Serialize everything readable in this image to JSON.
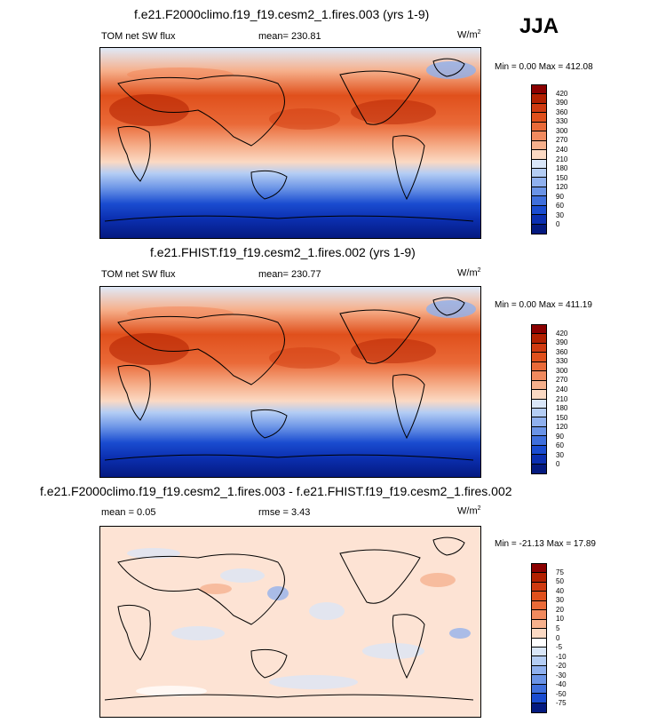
{
  "season": "JJA",
  "panels": [
    {
      "title": "f.e21.F2000climo.f19_f19.cesm2_1.fires.003 (yrs 1-9)",
      "left_label": "TOM net SW flux",
      "mid_label": "mean= 230.81",
      "units": "W/m",
      "units_sup": "2",
      "minmax": "Min =   0.00 Max = 412.08",
      "ticks": [
        "420",
        "390",
        "360",
        "330",
        "300",
        "270",
        "240",
        "210",
        "180",
        "150",
        "120",
        "90",
        "60",
        "30",
        "0"
      ]
    },
    {
      "title": "f.e21.FHIST.f19_f19.cesm2_1.fires.002 (yrs 1-9)",
      "left_label": "TOM net SW flux",
      "mid_label": "mean= 230.77",
      "units": "W/m",
      "units_sup": "2",
      "minmax": "Min =   0.00 Max = 411.19",
      "ticks": [
        "420",
        "390",
        "360",
        "330",
        "300",
        "270",
        "240",
        "210",
        "180",
        "150",
        "120",
        "90",
        "60",
        "30",
        "0"
      ]
    },
    {
      "title": "f.e21.F2000climo.f19_f19.cesm2_1.fires.003 - f.e21.FHIST.f19_f19.cesm2_1.fires.002",
      "left_label": "mean =   0.05",
      "mid_label": "rmse =   3.43",
      "units": "W/m",
      "units_sup": "2",
      "minmax": "Min = -21.13 Max =  17.89",
      "ticks": [
        "75",
        "50",
        "40",
        "30",
        "20",
        "10",
        "5",
        "0",
        "-5",
        "-10",
        "-20",
        "-30",
        "-40",
        "-50",
        "-75"
      ]
    }
  ],
  "colors": {
    "abs_scale": [
      "#8b0000",
      "#b22000",
      "#cf3a10",
      "#e0501c",
      "#ea6a38",
      "#f18a5e",
      "#f6b08c",
      "#fbd9c3",
      "#d9e6f8",
      "#b4cdf4",
      "#8fb0ee",
      "#6a93e6",
      "#3f6fdc",
      "#1a4cd0",
      "#0b2fb0",
      "#041a80"
    ],
    "diff_scale": [
      "#8b0000",
      "#b22000",
      "#cf3a10",
      "#e0501c",
      "#ea6a38",
      "#f18a5e",
      "#f6b08c",
      "#fbd9c3",
      "#ffffff",
      "#d9e6f8",
      "#b4cdf4",
      "#8fb0ee",
      "#6a93e6",
      "#3f6fdc",
      "#1a4cd0",
      "#041a80"
    ]
  },
  "chart_data": [
    {
      "type": "heatmap",
      "title": "f.e21.F2000climo.f19_f19.cesm2_1.fires.003 (yrs 1-9)",
      "variable": "TOM net SW flux",
      "units": "W/m2",
      "mean": 230.81,
      "min": 0.0,
      "max": 412.08,
      "levels": [
        0,
        30,
        60,
        90,
        120,
        150,
        180,
        210,
        240,
        270,
        300,
        330,
        360,
        390,
        420
      ]
    },
    {
      "type": "heatmap",
      "title": "f.e21.FHIST.f19_f19.cesm2_1.fires.002 (yrs 1-9)",
      "variable": "TOM net SW flux",
      "units": "W/m2",
      "mean": 230.77,
      "min": 0.0,
      "max": 411.19,
      "levels": [
        0,
        30,
        60,
        90,
        120,
        150,
        180,
        210,
        240,
        270,
        300,
        330,
        360,
        390,
        420
      ]
    },
    {
      "type": "heatmap",
      "title": "f.e21.F2000climo.f19_f19.cesm2_1.fires.003 - f.e21.FHIST.f19_f19.cesm2_1.fires.002",
      "units": "W/m2",
      "mean": 0.05,
      "rmse": 3.43,
      "min": -21.13,
      "max": 17.89,
      "levels": [
        -75,
        -50,
        -40,
        -30,
        -20,
        -10,
        -5,
        0,
        5,
        10,
        20,
        30,
        40,
        50,
        75
      ]
    }
  ]
}
